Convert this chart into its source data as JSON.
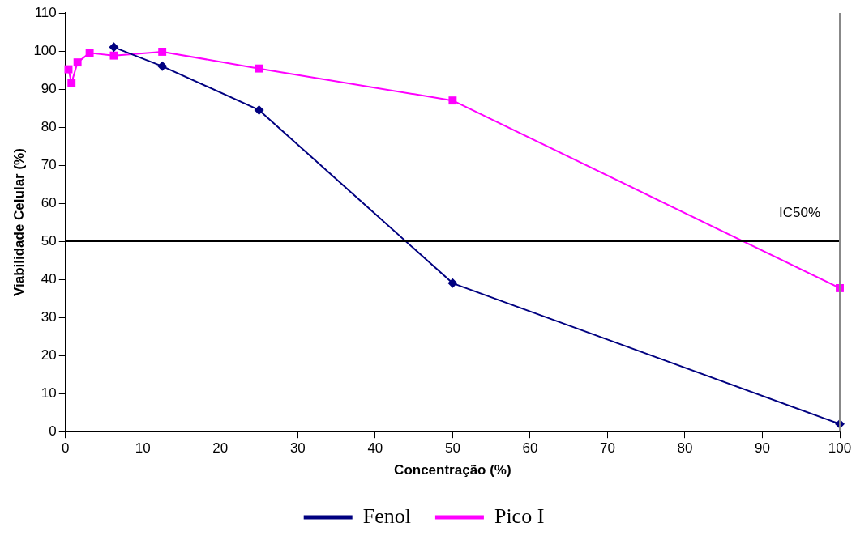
{
  "chart_data": {
    "type": "line",
    "xlabel": "Concentração (%)",
    "ylabel": "Viabilidade Celular (%)",
    "xlim": [
      0,
      100
    ],
    "xticks": [
      0,
      10,
      20,
      30,
      40,
      50,
      60,
      70,
      80,
      90,
      100
    ],
    "ylim": [
      0,
      110
    ],
    "yticks": [
      0,
      10,
      20,
      30,
      40,
      50,
      60,
      70,
      80,
      90,
      100,
      110
    ],
    "grid": false,
    "legend": "bottom",
    "series": [
      {
        "name": "Fenol",
        "color": "#000080",
        "marker": "diamond",
        "x": [
          6.25,
          12.5,
          25,
          50,
          100
        ],
        "values": [
          101,
          96,
          84.5,
          39,
          2
        ]
      },
      {
        "name": "Pico I",
        "color": "#ff00ff",
        "marker": "square",
        "x": [
          0.39,
          0.78,
          1.56,
          3.125,
          6.25,
          12.5,
          25,
          50,
          100
        ],
        "values": [
          95.2,
          91.6,
          97,
          99.5,
          98.8,
          99.8,
          95.4,
          87,
          37.7
        ]
      }
    ],
    "ref_lines": [
      {
        "axis": "y",
        "value": 50,
        "label": "IC50%",
        "color": "#000000"
      }
    ]
  }
}
